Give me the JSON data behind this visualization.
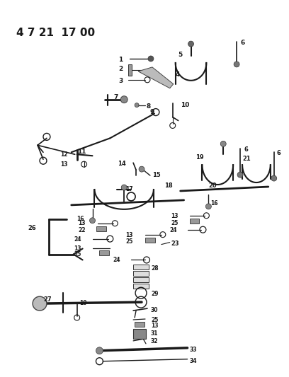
{
  "title": "4 7 21  17 00",
  "bg_color": "#ffffff",
  "line_color": "#1a1a1a",
  "figsize": [
    4.08,
    5.33
  ],
  "dpi": 100
}
